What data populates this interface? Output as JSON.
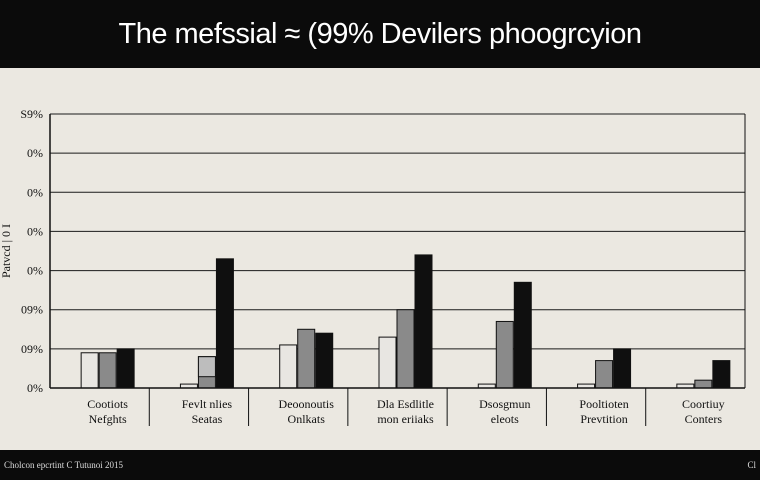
{
  "chart_data": {
    "type": "bar",
    "title": "The mefssial ≈ (99% Devilers phoogrcyion",
    "categories": [
      [
        "Cootiots",
        "Nefghts"
      ],
      [
        "Fevlt nlies",
        "Seatas"
      ],
      [
        "Deoonoutis",
        "Onlkats"
      ],
      [
        "Dla Esdlitle",
        "mon eriiaks"
      ],
      [
        "Dsosgmun",
        "eleots"
      ],
      [
        "Pooltioten",
        "Prevtition"
      ],
      [
        "Coortiuy",
        "Conters"
      ]
    ],
    "yticks": [
      "0%",
      "09%",
      "09%",
      "0%",
      "0%",
      "0%",
      "0%",
      "S9%"
    ],
    "ylim": [
      0,
      7
    ],
    "grid": true,
    "series": [
      {
        "color": "#e8e6e2",
        "values": [
          0.9,
          0.1,
          1.1,
          1.3,
          0.1,
          0.1,
          0.1
        ]
      },
      {
        "color": "#8a8a8a",
        "values": [
          0.9,
          0.8,
          1.5,
          2.0,
          1.7,
          0.7,
          0.2
        ]
      },
      {
        "color": "#0f0f0f",
        "values": [
          1.0,
          3.3,
          1.4,
          3.4,
          2.7,
          1.0,
          0.7
        ]
      }
    ],
    "caps": [
      [
        null,
        null,
        null
      ],
      [
        null,
        "#bdbdbd",
        null
      ],
      [
        null,
        null,
        null
      ],
      [
        null,
        null,
        null
      ],
      [
        null,
        null,
        null
      ],
      [
        null,
        null,
        null
      ],
      [
        null,
        null,
        null
      ]
    ]
  },
  "footer": {
    "left": "Cholcon epcrtint C Tutunoi 2015",
    "right": "Cl"
  },
  "side_label": "Patvcd | 0 I"
}
